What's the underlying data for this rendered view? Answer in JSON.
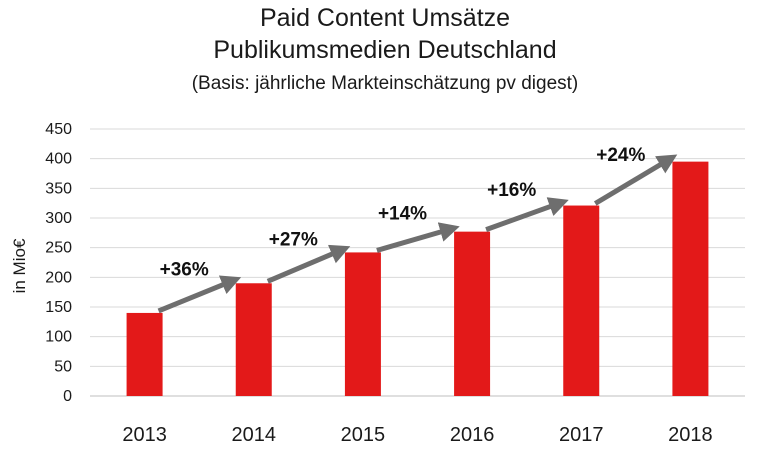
{
  "chart_data": {
    "type": "bar",
    "title": "Paid Content Umsätze",
    "subtitle": "Publikumsmedien Deutschland",
    "note": "(Basis: jährliche Markteinschätzung pv digest)",
    "ylabel": "in Mio€",
    "xlabel": "",
    "categories": [
      "2013",
      "2014",
      "2015",
      "2016",
      "2017",
      "2018"
    ],
    "values": [
      140,
      190,
      242,
      277,
      321,
      395
    ],
    "ylim": [
      0,
      450
    ],
    "yticks": [
      0,
      50,
      100,
      150,
      200,
      250,
      300,
      350,
      400,
      450
    ],
    "grid": true,
    "growth_labels": [
      "+36%",
      "+27%",
      "+14%",
      "+16%",
      "+24%"
    ],
    "colors": {
      "bar": "#e31919",
      "arrow": "#6e6e6e",
      "grid": "#d9d9d9"
    }
  }
}
